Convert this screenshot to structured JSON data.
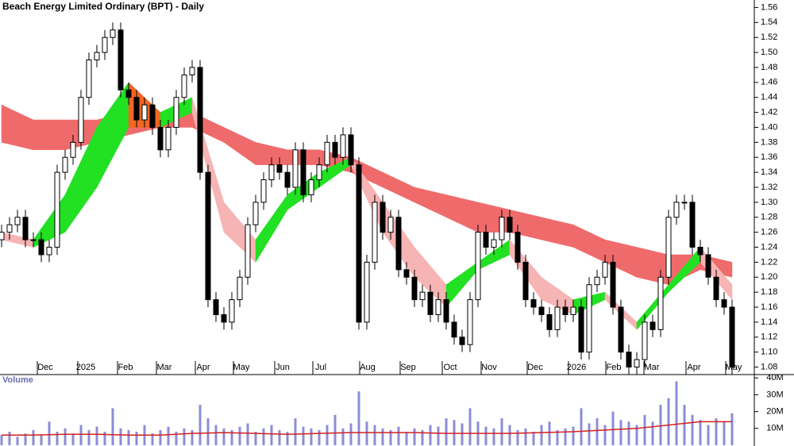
{
  "chart_data": {
    "type": "candlestick",
    "title": "Beach Energy Limited Ordinary (BPT) - Daily",
    "xlim": [
      0,
      190
    ],
    "xticks": [
      {
        "value": 11,
        "label": "Dec"
      },
      {
        "value": 21.2,
        "label": "2025"
      },
      {
        "value": 31.2,
        "label": "Feb"
      },
      {
        "value": 41,
        "label": "Mar"
      },
      {
        "value": 50.8,
        "label": "Apr"
      },
      {
        "value": 60.4,
        "label": "May"
      },
      {
        "value": 70.8,
        "label": "Jun"
      },
      {
        "value": 80.4,
        "label": "Jul"
      },
      {
        "value": 92.2,
        "label": "Aug"
      },
      {
        "value": 102.4,
        "label": "Sep"
      },
      {
        "value": 113,
        "label": "Oct"
      },
      {
        "value": 122.8,
        "label": "Nov"
      },
      {
        "value": 134.4,
        "label": "Dec"
      },
      {
        "value": 144.8,
        "label": "2026"
      },
      {
        "value": 154.2,
        "label": "Feb"
      },
      {
        "value": 163.8,
        "label": "Mar"
      },
      {
        "value": 174.4,
        "label": "Apr"
      },
      {
        "value": 184.4,
        "label": "May"
      }
    ],
    "ylim": [
      1.07,
      1.57
    ],
    "yticks": [
      1.08,
      {
        "value": 1.1,
        "label": "1.10"
      },
      1.12,
      1.14,
      1.16,
      1.18,
      {
        "value": 1.2,
        "label": "1.20"
      },
      1.22,
      1.24,
      1.26,
      1.28,
      {
        "value": 1.3,
        "label": "1.30"
      },
      1.32,
      1.34,
      1.36,
      1.38,
      {
        "value": 1.4,
        "label": "1.40"
      },
      1.42,
      1.44,
      1.46,
      1.48,
      {
        "value": 1.5,
        "label": "1.50"
      },
      1.52,
      1.54,
      1.56
    ],
    "x": [
      0,
      2,
      4,
      6,
      8,
      10,
      12,
      14,
      16,
      18,
      20,
      22,
      24,
      26,
      28,
      30,
      32,
      34,
      36,
      38,
      40,
      42,
      44,
      46,
      48,
      50,
      52,
      54,
      56,
      58,
      60,
      62,
      64,
      66,
      68,
      70,
      72,
      74,
      76,
      78,
      80,
      82,
      84,
      86,
      88,
      90,
      92,
      94,
      96,
      98,
      100,
      102,
      104,
      106,
      108,
      110,
      112,
      114,
      116,
      118,
      120,
      122,
      124,
      126,
      128,
      130,
      132,
      134,
      136,
      138,
      140,
      142,
      144,
      146,
      148,
      150,
      152,
      154,
      156,
      158,
      160,
      162,
      164,
      166,
      168,
      170,
      172,
      174,
      176,
      178,
      180,
      182,
      184
    ],
    "open": [
      1.25,
      1.26,
      1.27,
      1.28,
      1.25,
      1.25,
      1.23,
      1.24,
      1.34,
      1.36,
      1.38,
      1.44,
      1.49,
      1.5,
      1.52,
      1.53,
      1.45,
      1.44,
      1.41,
      1.43,
      1.4,
      1.37,
      1.4,
      1.44,
      1.47,
      1.48,
      1.34,
      1.17,
      1.15,
      1.14,
      1.17,
      1.2,
      1.27,
      1.3,
      1.33,
      1.35,
      1.34,
      1.32,
      1.37,
      1.31,
      1.33,
      1.35,
      1.38,
      1.36,
      1.39,
      1.35,
      1.14,
      1.22,
      1.3,
      1.26,
      1.28,
      1.21,
      1.2,
      1.17,
      1.18,
      1.15,
      1.17,
      1.14,
      1.12,
      1.11,
      1.17,
      1.26,
      1.24,
      1.25,
      1.28,
      1.26,
      1.22,
      1.17,
      1.16,
      1.15,
      1.13,
      1.16,
      1.15,
      1.16,
      1.1,
      1.19,
      1.2,
      1.22,
      1.16,
      1.1,
      1.08,
      1.09,
      1.14,
      1.13,
      1.2,
      1.28,
      1.3,
      1.3,
      1.24,
      1.23,
      1.2,
      1.17,
      1.16
    ],
    "high": [
      1.27,
      1.28,
      1.29,
      1.29,
      1.26,
      1.26,
      1.25,
      1.35,
      1.37,
      1.39,
      1.45,
      1.5,
      1.51,
      1.53,
      1.54,
      1.54,
      1.46,
      1.45,
      1.44,
      1.44,
      1.41,
      1.41,
      1.45,
      1.48,
      1.49,
      1.49,
      1.35,
      1.18,
      1.16,
      1.18,
      1.21,
      1.28,
      1.31,
      1.34,
      1.36,
      1.36,
      1.35,
      1.38,
      1.38,
      1.34,
      1.36,
      1.39,
      1.39,
      1.4,
      1.4,
      1.36,
      1.23,
      1.31,
      1.31,
      1.29,
      1.29,
      1.22,
      1.21,
      1.19,
      1.19,
      1.18,
      1.18,
      1.15,
      1.13,
      1.18,
      1.27,
      1.27,
      1.26,
      1.29,
      1.29,
      1.27,
      1.23,
      1.18,
      1.17,
      1.16,
      1.17,
      1.17,
      1.17,
      1.17,
      1.2,
      1.21,
      1.23,
      1.23,
      1.17,
      1.11,
      1.1,
      1.15,
      1.15,
      1.21,
      1.29,
      1.31,
      1.31,
      1.31,
      1.25,
      1.24,
      1.21,
      1.18,
      1.17
    ],
    "low": [
      1.24,
      1.25,
      1.26,
      1.24,
      1.24,
      1.22,
      1.22,
      1.23,
      1.33,
      1.35,
      1.37,
      1.43,
      1.48,
      1.49,
      1.51,
      1.44,
      1.43,
      1.4,
      1.4,
      1.39,
      1.36,
      1.36,
      1.39,
      1.43,
      1.46,
      1.33,
      1.16,
      1.14,
      1.13,
      1.13,
      1.16,
      1.19,
      1.26,
      1.29,
      1.32,
      1.33,
      1.31,
      1.31,
      1.3,
      1.3,
      1.32,
      1.34,
      1.35,
      1.35,
      1.34,
      1.13,
      1.13,
      1.21,
      1.25,
      1.25,
      1.2,
      1.19,
      1.16,
      1.16,
      1.14,
      1.14,
      1.13,
      1.11,
      1.1,
      1.1,
      1.16,
      1.23,
      1.23,
      1.24,
      1.25,
      1.21,
      1.16,
      1.15,
      1.14,
      1.12,
      1.12,
      1.14,
      1.14,
      1.09,
      1.09,
      1.18,
      1.19,
      1.15,
      1.09,
      1.07,
      1.07,
      1.08,
      1.12,
      1.12,
      1.19,
      1.27,
      1.29,
      1.23,
      1.22,
      1.19,
      1.16,
      1.15,
      1.07
    ],
    "close": [
      1.26,
      1.27,
      1.28,
      1.25,
      1.25,
      1.23,
      1.24,
      1.34,
      1.36,
      1.38,
      1.44,
      1.49,
      1.5,
      1.52,
      1.53,
      1.45,
      1.44,
      1.41,
      1.43,
      1.4,
      1.37,
      1.4,
      1.44,
      1.47,
      1.48,
      1.34,
      1.17,
      1.15,
      1.14,
      1.17,
      1.2,
      1.27,
      1.3,
      1.33,
      1.35,
      1.34,
      1.32,
      1.37,
      1.31,
      1.33,
      1.35,
      1.38,
      1.36,
      1.39,
      1.35,
      1.14,
      1.22,
      1.3,
      1.26,
      1.28,
      1.21,
      1.2,
      1.17,
      1.18,
      1.15,
      1.17,
      1.14,
      1.12,
      1.11,
      1.17,
      1.26,
      1.24,
      1.25,
      1.28,
      1.26,
      1.22,
      1.17,
      1.16,
      1.15,
      1.13,
      1.16,
      1.15,
      1.16,
      1.1,
      1.19,
      1.2,
      1.22,
      1.16,
      1.1,
      1.08,
      1.09,
      1.14,
      1.13,
      1.2,
      1.28,
      1.3,
      1.3,
      1.24,
      1.23,
      1.2,
      1.17,
      1.16,
      1.08
    ],
    "up_color": "#ffffff",
    "down_color": "#000000",
    "band_x": [
      0,
      8,
      16,
      24,
      32,
      40,
      48,
      56,
      64,
      72,
      80,
      88,
      96,
      104,
      112,
      120,
      128,
      136,
      144,
      152,
      160,
      168,
      176,
      184
    ],
    "long_band_upper": [
      1.43,
      1.41,
      1.41,
      1.41,
      1.42,
      1.42,
      1.42,
      1.4,
      1.38,
      1.37,
      1.37,
      1.36,
      1.34,
      1.32,
      1.31,
      1.3,
      1.29,
      1.28,
      1.27,
      1.25,
      1.24,
      1.23,
      1.23,
      1.22
    ],
    "long_band_lower": [
      1.38,
      1.37,
      1.37,
      1.38,
      1.39,
      1.4,
      1.4,
      1.38,
      1.35,
      1.35,
      1.35,
      1.34,
      1.32,
      1.3,
      1.28,
      1.26,
      1.26,
      1.25,
      1.24,
      1.22,
      1.2,
      1.19,
      1.21,
      1.2
    ],
    "long_band_color": "#ef6b6b",
    "short_band_upper": [
      1.26,
      1.25,
      1.31,
      1.4,
      1.46,
      1.42,
      1.44,
      1.3,
      1.25,
      1.31,
      1.34,
      1.36,
      1.3,
      1.24,
      1.19,
      1.22,
      1.25,
      1.2,
      1.17,
      1.18,
      1.14,
      1.19,
      1.24,
      1.19
    ],
    "short_band_lower": [
      1.25,
      1.24,
      1.26,
      1.32,
      1.4,
      1.4,
      1.42,
      1.26,
      1.22,
      1.29,
      1.32,
      1.35,
      1.26,
      1.2,
      1.16,
      1.21,
      1.23,
      1.17,
      1.15,
      1.17,
      1.13,
      1.18,
      1.22,
      1.17
    ],
    "short_band_colors": {
      "rising": "#22e022",
      "falling": "#f7b4b4",
      "mixed": "#f26522"
    },
    "volume_label": "Volume",
    "volume_ylim": [
      0,
      42000000
    ],
    "volume_yticks": [
      {
        "value": 10000000,
        "label": "10M"
      },
      {
        "value": 20000000,
        "label": "20M"
      },
      {
        "value": 30000000,
        "label": "30M"
      },
      {
        "value": 40000000,
        "label": "40M"
      }
    ],
    "volume": [
      6000000,
      8000000,
      5000000,
      7000000,
      9000000,
      6000000,
      14000000,
      8000000,
      10000000,
      7000000,
      12000000,
      9000000,
      11000000,
      8000000,
      22000000,
      10000000,
      9000000,
      8000000,
      12000000,
      7000000,
      9000000,
      11000000,
      8000000,
      10000000,
      9000000,
      24000000,
      16000000,
      12000000,
      10000000,
      9000000,
      11000000,
      13000000,
      8000000,
      10000000,
      12000000,
      9000000,
      8000000,
      16000000,
      11000000,
      10000000,
      9000000,
      12000000,
      18000000,
      10000000,
      13000000,
      32000000,
      14000000,
      12000000,
      10000000,
      9000000,
      11000000,
      8000000,
      10000000,
      9000000,
      12000000,
      11000000,
      16000000,
      15000000,
      13000000,
      22000000,
      14000000,
      11000000,
      10000000,
      16000000,
      12000000,
      9000000,
      10000000,
      8000000,
      12000000,
      14000000,
      9000000,
      10000000,
      11000000,
      22000000,
      13000000,
      16000000,
      12000000,
      20000000,
      15000000,
      14000000,
      12000000,
      18000000,
      14000000,
      24000000,
      28000000,
      38000000,
      24000000,
      18000000,
      15000000,
      12000000,
      16000000,
      14000000,
      19000000
    ],
    "volume_color": "#8c8cd8",
    "volume_ma": [
      6000000,
      6000000,
      6500000,
      6500000,
      6000000,
      6000000,
      7000000,
      7500000,
      7000000,
      6500000,
      7000000,
      7500000,
      7500000,
      7500000,
      7000000,
      7000000,
      7000000,
      7500000,
      8000000,
      9000000,
      10000000,
      12000000,
      14000000,
      14000000
    ],
    "volume_ma_color": "#d42020"
  }
}
